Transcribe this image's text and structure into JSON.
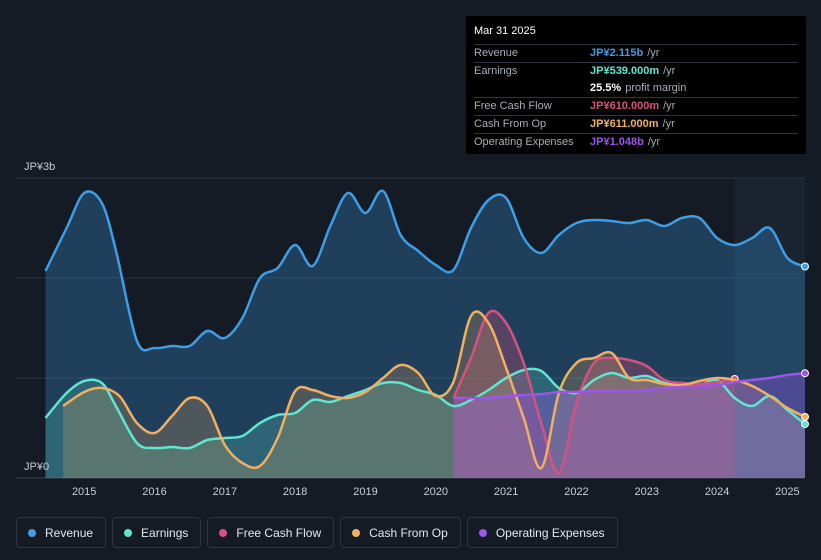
{
  "tooltip": {
    "date": "Mar 31 2025",
    "rows": [
      {
        "label": "Revenue",
        "value": "JP¥2.115b",
        "unit": "/yr",
        "color": "#3d9ee8"
      },
      {
        "label": "Earnings",
        "value": "JP¥539.000m",
        "unit": "/yr",
        "color": "#5ee6d0"
      },
      {
        "label": "",
        "value": "25.5%",
        "unit": "profit margin",
        "color": "#ffffff"
      },
      {
        "label": "Free Cash Flow",
        "value": "JP¥610.000m",
        "unit": "/yr",
        "color": "#d6517e"
      },
      {
        "label": "Cash From Op",
        "value": "JP¥611.000m",
        "unit": "/yr",
        "color": "#f0b060"
      },
      {
        "label": "Operating Expenses",
        "value": "JP¥1.048b",
        "unit": "/yr",
        "color": "#9b55e8"
      }
    ]
  },
  "legend": [
    {
      "label": "Revenue",
      "color": "#3d9ee8"
    },
    {
      "label": "Earnings",
      "color": "#5ee6d0"
    },
    {
      "label": "Free Cash Flow",
      "color": "#d6517e"
    },
    {
      "label": "Cash From Op",
      "color": "#f0b060"
    },
    {
      "label": "Operating Expenses",
      "color": "#9b55e8"
    }
  ],
  "chart_data": {
    "type": "line",
    "ylabel_top": "JP¥3b",
    "ylabel_bottom": "JP¥0",
    "ylim": [
      0,
      3
    ],
    "xlim": [
      2014.4,
      2025.25
    ],
    "x_ticks": [
      "2015",
      "2016",
      "2017",
      "2018",
      "2019",
      "2020",
      "2021",
      "2022",
      "2023",
      "2024",
      "2025"
    ],
    "grid": true,
    "legend_position": "bottom",
    "series": [
      {
        "name": "Revenue",
        "color": "#3d9ee8",
        "x": [
          2014.45,
          2014.75,
          2015.0,
          2015.25,
          2015.45,
          2015.75,
          2016.0,
          2016.25,
          2016.5,
          2016.75,
          2017.0,
          2017.25,
          2017.5,
          2017.75,
          2018.0,
          2018.25,
          2018.5,
          2018.75,
          2019.0,
          2019.25,
          2019.5,
          2019.75,
          2020.0,
          2020.25,
          2020.5,
          2020.75,
          2021.0,
          2021.25,
          2021.5,
          2021.75,
          2022.0,
          2022.25,
          2022.5,
          2022.75,
          2023.0,
          2023.25,
          2023.5,
          2023.75,
          2024.0,
          2024.25,
          2024.5,
          2024.75,
          2025.0,
          2025.25
        ],
        "values": [
          2.07,
          2.5,
          2.85,
          2.75,
          2.28,
          1.37,
          1.3,
          1.32,
          1.32,
          1.47,
          1.4,
          1.6,
          2.0,
          2.1,
          2.33,
          2.12,
          2.52,
          2.85,
          2.65,
          2.87,
          2.43,
          2.27,
          2.13,
          2.08,
          2.5,
          2.78,
          2.8,
          2.4,
          2.25,
          2.43,
          2.55,
          2.58,
          2.57,
          2.55,
          2.58,
          2.52,
          2.6,
          2.6,
          2.4,
          2.33,
          2.4,
          2.5,
          2.2,
          2.115
        ]
      },
      {
        "name": "Earnings",
        "color": "#5ee6d0",
        "x": [
          2014.45,
          2014.75,
          2015.0,
          2015.25,
          2015.45,
          2015.75,
          2016.0,
          2016.25,
          2016.5,
          2016.75,
          2017.0,
          2017.25,
          2017.5,
          2017.75,
          2018.0,
          2018.25,
          2018.5,
          2018.75,
          2019.0,
          2019.25,
          2019.5,
          2019.75,
          2020.0,
          2020.25,
          2020.5,
          2020.75,
          2021.0,
          2021.25,
          2021.5,
          2021.75,
          2022.0,
          2022.25,
          2022.5,
          2022.75,
          2023.0,
          2023.25,
          2023.5,
          2023.75,
          2024.0,
          2024.25,
          2024.5,
          2024.75,
          2025.0,
          2025.25
        ],
        "values": [
          0.6,
          0.85,
          0.97,
          0.95,
          0.72,
          0.35,
          0.3,
          0.31,
          0.3,
          0.38,
          0.4,
          0.42,
          0.55,
          0.63,
          0.65,
          0.78,
          0.76,
          0.82,
          0.88,
          0.95,
          0.95,
          0.88,
          0.83,
          0.72,
          0.78,
          0.88,
          1.0,
          1.08,
          1.07,
          0.9,
          0.85,
          0.98,
          1.05,
          1.0,
          1.02,
          0.95,
          0.95,
          0.93,
          0.98,
          0.8,
          0.72,
          0.82,
          0.68,
          0.539
        ]
      },
      {
        "name": "Free Cash Flow",
        "color": "#d6517e",
        "x": [
          2020.25,
          2020.5,
          2020.75,
          2021.0,
          2021.25,
          2021.5,
          2021.75,
          2022.0,
          2022.25,
          2022.5,
          2022.75,
          2023.0,
          2023.25,
          2023.5,
          2023.75,
          2024.0,
          2024.25
        ],
        "values": [
          0.8,
          1.2,
          1.65,
          1.55,
          1.15,
          0.55,
          0.05,
          0.75,
          1.15,
          1.2,
          1.18,
          1.12,
          0.98,
          0.95,
          0.94,
          0.96,
          0.99
        ]
      },
      {
        "name": "Cash From Op",
        "color": "#f0b060",
        "x": [
          2014.7,
          2015.0,
          2015.25,
          2015.5,
          2015.75,
          2016.0,
          2016.25,
          2016.5,
          2016.75,
          2017.0,
          2017.25,
          2017.5,
          2017.75,
          2018.0,
          2018.25,
          2018.5,
          2018.75,
          2019.0,
          2019.25,
          2019.5,
          2019.75,
          2020.0,
          2020.25,
          2020.5,
          2020.75,
          2021.0,
          2021.25,
          2021.5,
          2021.75,
          2022.0,
          2022.25,
          2022.5,
          2022.75,
          2023.0,
          2023.25,
          2023.5,
          2023.75,
          2024.0,
          2024.25,
          2024.5,
          2024.75,
          2025.0,
          2025.25
        ],
        "values": [
          0.72,
          0.86,
          0.9,
          0.82,
          0.55,
          0.45,
          0.62,
          0.8,
          0.72,
          0.33,
          0.15,
          0.12,
          0.4,
          0.87,
          0.88,
          0.82,
          0.8,
          0.86,
          1.0,
          1.13,
          1.05,
          0.82,
          0.96,
          1.62,
          1.55,
          1.1,
          0.6,
          0.1,
          0.85,
          1.15,
          1.2,
          1.25,
          1.0,
          0.98,
          0.94,
          0.93,
          0.97,
          1.0,
          0.98,
          0.92,
          0.82,
          0.7,
          0.611
        ]
      },
      {
        "name": "Operating Expenses",
        "color": "#9b55e8",
        "x": [
          2020.25,
          2020.5,
          2020.75,
          2021.0,
          2021.25,
          2021.5,
          2021.75,
          2022.0,
          2022.25,
          2022.5,
          2022.75,
          2023.0,
          2023.25,
          2023.5,
          2023.75,
          2024.0,
          2024.25,
          2024.5,
          2024.75,
          2025.0,
          2025.25
        ],
        "values": [
          0.8,
          0.8,
          0.8,
          0.82,
          0.83,
          0.84,
          0.86,
          0.86,
          0.87,
          0.87,
          0.87,
          0.88,
          0.9,
          0.91,
          0.92,
          0.93,
          0.96,
          0.98,
          1.0,
          1.03,
          1.048
        ]
      }
    ]
  }
}
